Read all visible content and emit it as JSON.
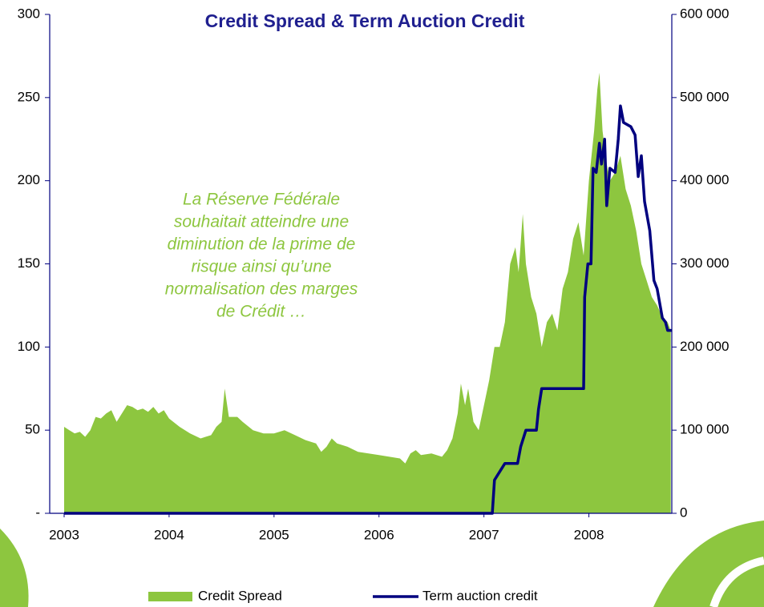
{
  "chart_data": {
    "type": "area-line",
    "title": "Credit Spread & Term Auction Credit",
    "annotation": [
      "La Réserve Fédérale",
      "souhaitait atteindre une",
      "diminution de la prime de",
      "risque ainsi qu’une",
      "normalisation des marges",
      "de Crédit …"
    ],
    "xlim": [
      2003,
      2008.79
    ],
    "xticks": [
      2003,
      2004,
      2005,
      2006,
      2007,
      2008
    ],
    "ylim": [
      0,
      300
    ],
    "yticks": [
      {
        "value": 0,
        "label": "-"
      },
      50,
      100,
      150,
      200,
      250,
      300
    ],
    "y2lim": [
      0,
      600000
    ],
    "y2ticks": [
      0,
      {
        "value": 100000,
        "label": "100 000"
      },
      {
        "value": 200000,
        "label": "200 000"
      },
      {
        "value": 300000,
        "label": "300 000"
      },
      {
        "value": 400000,
        "label": "400 000"
      },
      {
        "value": 500000,
        "label": "500 000"
      },
      {
        "value": 600000,
        "label": "600 000"
      }
    ],
    "series": [
      {
        "name": "Credit Spread",
        "type": "area",
        "color": "#8dc63f",
        "x": [
          2003.0,
          2003.05,
          2003.1,
          2003.15,
          2003.2,
          2003.25,
          2003.3,
          2003.35,
          2003.4,
          2003.45,
          2003.5,
          2003.55,
          2003.6,
          2003.65,
          2003.7,
          2003.75,
          2003.8,
          2003.85,
          2003.9,
          2003.95,
          2004.0,
          2004.1,
          2004.2,
          2004.3,
          2004.4,
          2004.45,
          2004.5,
          2004.53,
          2004.57,
          2004.65,
          2004.7,
          2004.8,
          2004.9,
          2005.0,
          2005.1,
          2005.2,
          2005.3,
          2005.4,
          2005.45,
          2005.5,
          2005.55,
          2005.6,
          2005.7,
          2005.8,
          2005.9,
          2006.0,
          2006.1,
          2006.2,
          2006.25,
          2006.3,
          2006.35,
          2006.4,
          2006.5,
          2006.6,
          2006.65,
          2006.7,
          2006.75,
          2006.78,
          2006.82,
          2006.85,
          2006.9,
          2006.95,
          2007.0,
          2007.05,
          2007.1,
          2007.15,
          2007.2,
          2007.25,
          2007.3,
          2007.33,
          2007.37,
          2007.4,
          2007.45,
          2007.5,
          2007.55,
          2007.6,
          2007.65,
          2007.7,
          2007.75,
          2007.8,
          2007.85,
          2007.9,
          2007.95,
          2008.0,
          2008.05,
          2008.08,
          2008.1,
          2008.13,
          2008.17,
          2008.2,
          2008.25,
          2008.3,
          2008.35,
          2008.4,
          2008.45,
          2008.5,
          2008.55,
          2008.6,
          2008.65,
          2008.7,
          2008.75,
          2008.78
        ],
        "values": [
          52,
          50,
          48,
          49,
          46,
          50,
          58,
          57,
          60,
          62,
          55,
          60,
          65,
          64,
          62,
          63,
          61,
          64,
          60,
          62,
          57,
          52,
          48,
          45,
          47,
          52,
          55,
          75,
          58,
          58,
          55,
          50,
          48,
          48,
          50,
          47,
          44,
          42,
          37,
          40,
          45,
          42,
          40,
          37,
          36,
          35,
          34,
          33,
          30,
          36,
          38,
          35,
          36,
          34,
          38,
          45,
          60,
          78,
          65,
          75,
          55,
          50,
          65,
          80,
          100,
          100,
          115,
          150,
          160,
          145,
          180,
          150,
          130,
          120,
          100,
          115,
          120,
          110,
          135,
          145,
          165,
          175,
          155,
          200,
          230,
          255,
          265,
          230,
          210,
          200,
          205,
          215,
          195,
          185,
          170,
          150,
          140,
          130,
          125,
          118,
          115,
          110
        ]
      },
      {
        "name": "Term auction credit",
        "type": "line",
        "axis": "y2",
        "color": "#00007f",
        "x": [
          2003.0,
          2007.08,
          2007.1,
          2007.15,
          2007.2,
          2007.32,
          2007.35,
          2007.4,
          2007.5,
          2007.52,
          2007.55,
          2007.95,
          2007.96,
          2007.99,
          2008.02,
          2008.04,
          2008.07,
          2008.1,
          2008.12,
          2008.15,
          2008.17,
          2008.2,
          2008.25,
          2008.28,
          2008.3,
          2008.33,
          2008.4,
          2008.44,
          2008.47,
          2008.5,
          2008.53,
          2008.58,
          2008.62,
          2008.65,
          2008.7,
          2008.73,
          2008.75,
          2008.79
        ],
        "values": [
          0,
          0,
          40000,
          50000,
          60000,
          60000,
          80000,
          100000,
          100000,
          125000,
          150000,
          150000,
          260000,
          300000,
          300000,
          415000,
          410000,
          445000,
          420000,
          450000,
          370000,
          415000,
          410000,
          450000,
          490000,
          470000,
          465000,
          455000,
          405000,
          430000,
          375000,
          340000,
          280000,
          270000,
          235000,
          230000,
          220000,
          220000
        ]
      }
    ]
  }
}
